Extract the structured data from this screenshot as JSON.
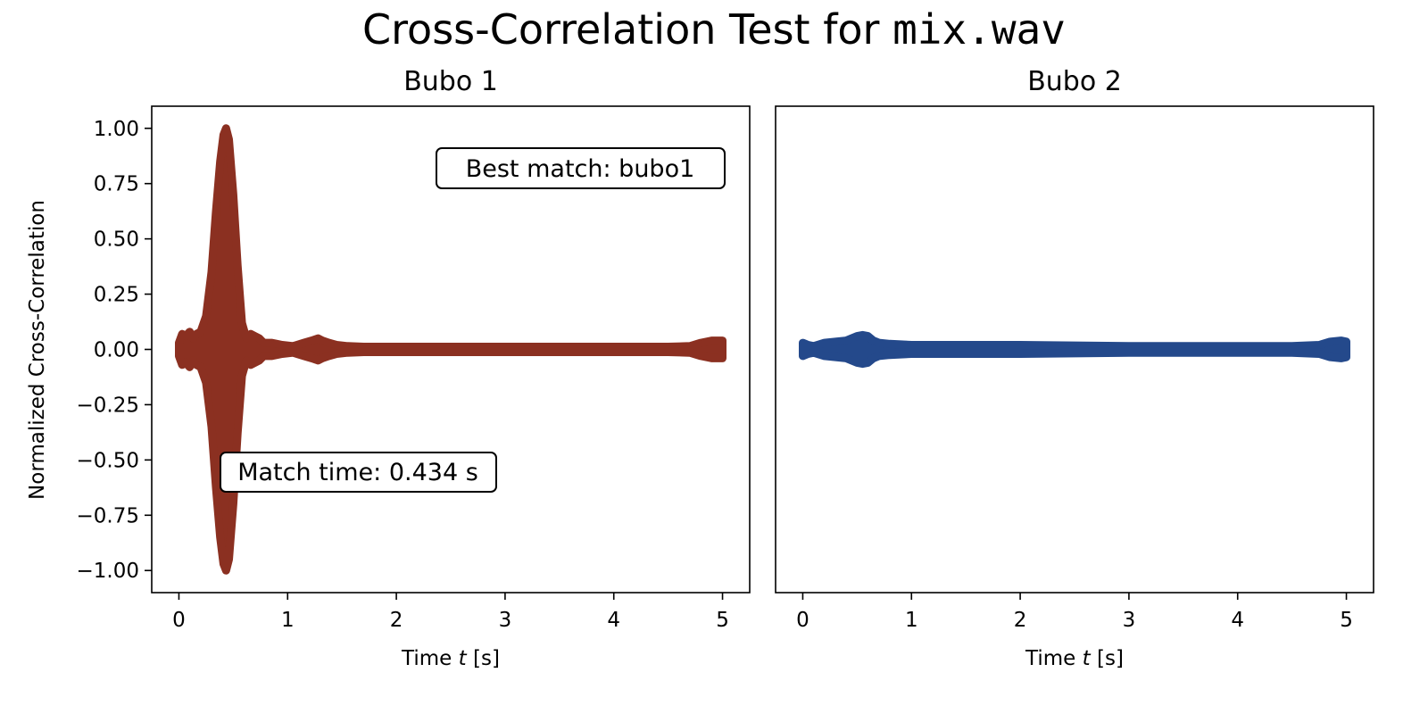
{
  "figure": {
    "title_prefix": "Cross-Correlation Test for ",
    "title_file": "mix.wav"
  },
  "chart_data": [
    {
      "type": "line",
      "title": "Bubo 1",
      "xlabel_prefix": "Time ",
      "xlabel_var": "t",
      "xlabel_suffix": " [s]",
      "ylabel": "Normalized Cross-Correlation",
      "xlim": [
        -0.25,
        5.25
      ],
      "ylim": [
        -1.1,
        1.1
      ],
      "xticks": [
        0,
        1,
        2,
        3,
        4,
        5
      ],
      "xtick_labels": [
        "0",
        "1",
        "2",
        "3",
        "4",
        "5"
      ],
      "yticks": [
        1.0,
        0.75,
        0.5,
        0.25,
        0.0,
        -0.25,
        -0.5,
        -0.75,
        -1.0
      ],
      "ytick_labels": [
        "1.00",
        "0.75",
        "0.50",
        "0.25",
        "0.00",
        "−0.25",
        "−0.50",
        "−0.75",
        "−1.00"
      ],
      "grid": false,
      "color": "#8B3021",
      "series": [
        {
          "x": [
            0.0,
            0.03,
            0.06,
            0.1,
            0.13,
            0.16,
            0.2,
            0.25,
            0.3,
            0.34,
            0.38,
            0.41,
            0.434,
            0.46,
            0.5,
            0.54,
            0.58,
            0.62,
            0.66,
            0.7,
            0.74,
            0.78,
            0.85,
            0.95,
            1.05,
            1.15,
            1.22,
            1.28,
            1.32,
            1.38,
            1.45,
            1.55,
            1.7,
            2.0,
            3.0,
            4.0,
            4.5,
            4.7,
            4.8,
            4.9,
            5.0
          ],
          "envelope": [
            0.03,
            0.07,
            0.06,
            0.08,
            0.05,
            0.07,
            0.08,
            0.15,
            0.35,
            0.62,
            0.85,
            0.97,
            1.0,
            0.95,
            0.7,
            0.38,
            0.12,
            0.05,
            0.07,
            0.06,
            0.05,
            0.03,
            0.03,
            0.02,
            0.015,
            0.03,
            0.04,
            0.05,
            0.04,
            0.03,
            0.02,
            0.015,
            0.012,
            0.01,
            0.01,
            0.01,
            0.01,
            0.015,
            0.03,
            0.04,
            0.04
          ]
        }
      ],
      "annotations": {
        "best_match": "Best match: bubo1",
        "match_time": "Match time: 0.434 s"
      }
    },
    {
      "type": "line",
      "title": "Bubo 2",
      "xlabel_prefix": "Time ",
      "xlabel_var": "t",
      "xlabel_suffix": " [s]",
      "xlim": [
        -0.25,
        5.25
      ],
      "ylim": [
        -1.1,
        1.1
      ],
      "xticks": [
        0,
        1,
        2,
        3,
        4,
        5
      ],
      "xtick_labels": [
        "0",
        "1",
        "2",
        "3",
        "4",
        "5"
      ],
      "grid": false,
      "color": "#24498B",
      "series": [
        {
          "x": [
            0.0,
            0.05,
            0.1,
            0.2,
            0.3,
            0.4,
            0.45,
            0.5,
            0.55,
            0.6,
            0.65,
            0.7,
            0.8,
            1.0,
            1.5,
            2.0,
            3.0,
            4.0,
            4.5,
            4.75,
            4.85,
            4.95,
            5.0
          ],
          "envelope": [
            0.03,
            0.02,
            0.015,
            0.03,
            0.035,
            0.04,
            0.05,
            0.06,
            0.065,
            0.06,
            0.04,
            0.03,
            0.025,
            0.02,
            0.02,
            0.02,
            0.015,
            0.015,
            0.015,
            0.02,
            0.035,
            0.04,
            0.035
          ]
        }
      ]
    }
  ]
}
